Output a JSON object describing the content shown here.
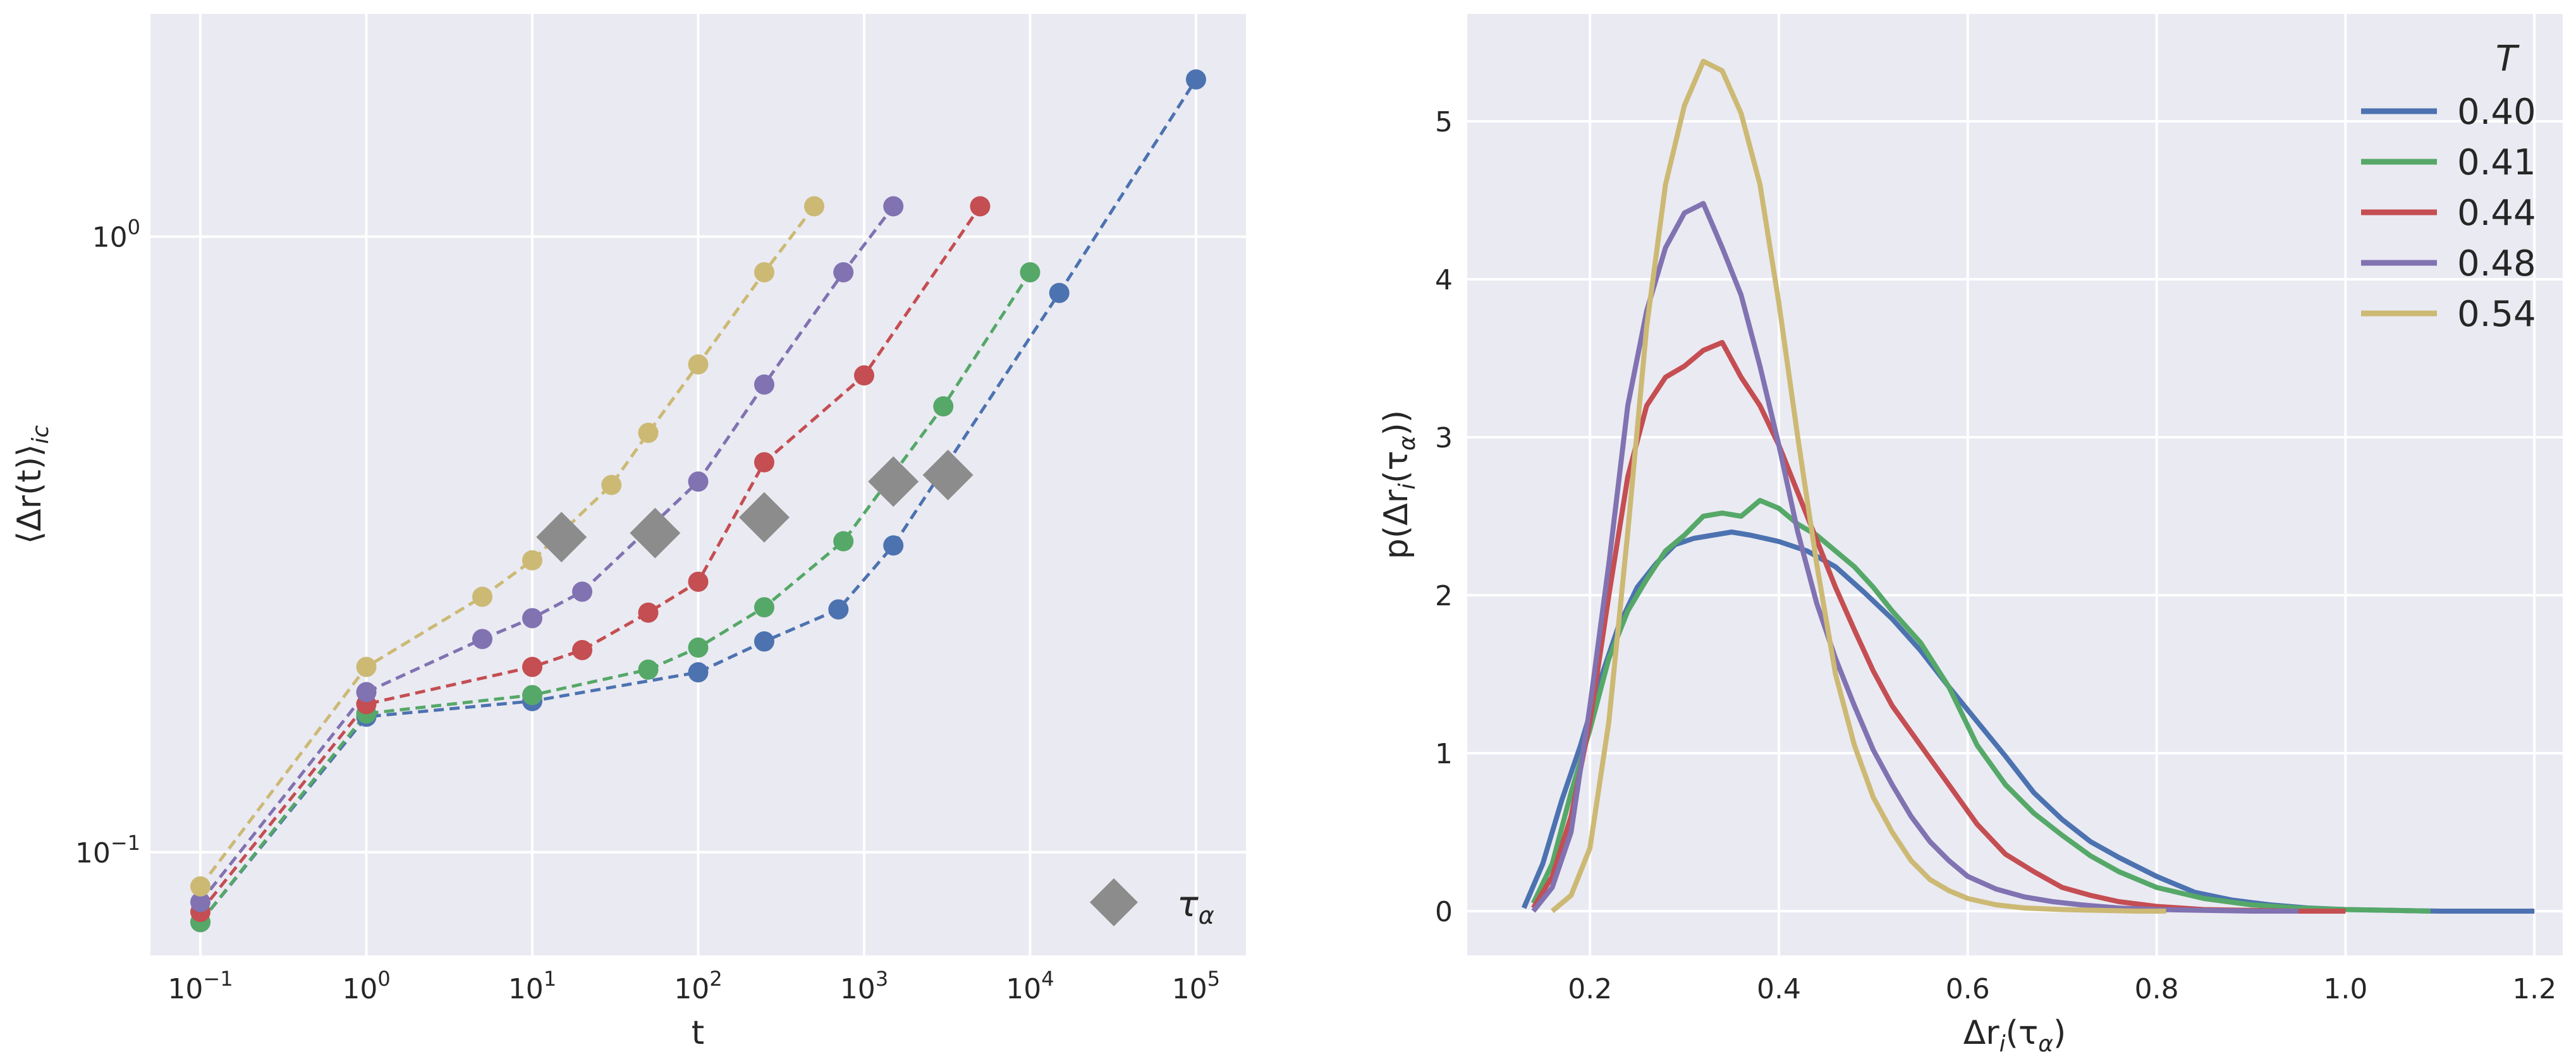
{
  "chart_data": [
    {
      "type": "line",
      "subtype": "log-log line with markers",
      "xlabel": "t",
      "ylabel_parts": [
        "⟨Δr(t)⟩",
        "ic"
      ],
      "xscale": "log",
      "yscale": "log",
      "xlim": [
        0.05,
        200000
      ],
      "ylim": [
        0.068,
        2.3
      ],
      "grid": true,
      "x_ticks": [
        {
          "value": 0.1,
          "base": "10",
          "exp": "−1"
        },
        {
          "value": 1,
          "base": "10",
          "exp": "0"
        },
        {
          "value": 10,
          "base": "10",
          "exp": "1"
        },
        {
          "value": 100,
          "base": "10",
          "exp": "2"
        },
        {
          "value": 1000,
          "base": "10",
          "exp": "3"
        },
        {
          "value": 10000,
          "base": "10",
          "exp": "4"
        },
        {
          "value": 100000,
          "base": "10",
          "exp": "5"
        }
      ],
      "y_ticks": [
        {
          "value": 0.1,
          "base": "10",
          "exp": "−1"
        },
        {
          "value": 1,
          "base": "10",
          "exp": "0"
        }
      ],
      "series": [
        {
          "name": "0.40",
          "color": "#4c72b0",
          "x": [
            0.1,
            1,
            10,
            100,
            250,
            700,
            1500,
            15000,
            100000
          ],
          "y": [
            0.077,
            0.166,
            0.176,
            0.196,
            0.22,
            0.248,
            0.315,
            0.81,
            1.8
          ]
        },
        {
          "name": "0.41",
          "color": "#55a868",
          "x": [
            0.1,
            1,
            10,
            50,
            100,
            250,
            750,
            3000,
            10000
          ],
          "y": [
            0.077,
            0.168,
            0.18,
            0.198,
            0.215,
            0.25,
            0.32,
            0.53,
            0.875
          ]
        },
        {
          "name": "0.44",
          "color": "#c44e52",
          "x": [
            0.1,
            1,
            10,
            20,
            50,
            100,
            250,
            1000,
            5000
          ],
          "y": [
            0.08,
            0.174,
            0.2,
            0.213,
            0.245,
            0.275,
            0.43,
            0.595,
            1.12
          ]
        },
        {
          "name": "0.48",
          "color": "#8172b2",
          "x": [
            0.1,
            1,
            5,
            10,
            20,
            100,
            250,
            750,
            1500
          ],
          "y": [
            0.083,
            0.182,
            0.222,
            0.24,
            0.265,
            0.4,
            0.575,
            0.875,
            1.12
          ]
        },
        {
          "name": "0.54",
          "color": "#ccb974",
          "x": [
            0.1,
            1,
            5,
            10,
            30,
            50,
            100,
            250,
            500
          ],
          "y": [
            0.088,
            0.2,
            0.26,
            0.298,
            0.395,
            0.48,
            0.62,
            0.875,
            1.12
          ]
        }
      ],
      "tau_alpha": {
        "label": "τ",
        "sub": "α",
        "color": "#8c8c8c",
        "points": [
          {
            "x": 15,
            "y": 0.325
          },
          {
            "x": 55,
            "y": 0.33
          },
          {
            "x": 250,
            "y": 0.35
          },
          {
            "x": 1500,
            "y": 0.4
          },
          {
            "x": 3200,
            "y": 0.41
          }
        ]
      }
    },
    {
      "type": "line",
      "xlabel": "Δr",
      "xlabel_sub": "i",
      "xlabel_tail": "(τ",
      "xlabel_sub2": "α",
      "xlabel_end": ")",
      "ylabel": "p(Δr",
      "ylabel_sub": "i",
      "ylabel_tail": "(τ",
      "ylabel_sub2": "α",
      "ylabel_end": "))",
      "xlim": [
        0.07,
        1.23
      ],
      "ylim": [
        -0.28,
        5.68
      ],
      "grid": true,
      "x_ticks": [
        "0.2",
        "0.4",
        "0.6",
        "0.8",
        "1.0",
        "1.2"
      ],
      "y_ticks": [
        "0",
        "1",
        "2",
        "3",
        "4",
        "5"
      ],
      "legend_title": "T",
      "legend_position": "top-right",
      "series": [
        {
          "name": "0.40",
          "color": "#4c72b0",
          "x": [
            0.13,
            0.15,
            0.17,
            0.19,
            0.21,
            0.23,
            0.25,
            0.27,
            0.29,
            0.31,
            0.33,
            0.35,
            0.37,
            0.4,
            0.43,
            0.46,
            0.49,
            0.52,
            0.55,
            0.58,
            0.61,
            0.64,
            0.67,
            0.7,
            0.73,
            0.76,
            0.8,
            0.84,
            0.88,
            0.92,
            0.96,
            1.0,
            1.05,
            1.1,
            1.15,
            1.2
          ],
          "y": [
            0.02,
            0.3,
            0.7,
            1.05,
            1.45,
            1.8,
            2.05,
            2.2,
            2.32,
            2.36,
            2.38,
            2.4,
            2.38,
            2.34,
            2.28,
            2.18,
            2.02,
            1.85,
            1.65,
            1.42,
            1.2,
            0.98,
            0.75,
            0.58,
            0.44,
            0.34,
            0.22,
            0.12,
            0.07,
            0.04,
            0.02,
            0.01,
            0.005,
            0.0,
            0.0,
            0.0
          ]
        },
        {
          "name": "0.41",
          "color": "#55a868",
          "x": [
            0.14,
            0.16,
            0.18,
            0.2,
            0.22,
            0.24,
            0.26,
            0.28,
            0.3,
            0.32,
            0.34,
            0.36,
            0.38,
            0.4,
            0.42,
            0.44,
            0.46,
            0.48,
            0.5,
            0.52,
            0.55,
            0.58,
            0.61,
            0.64,
            0.67,
            0.7,
            0.73,
            0.76,
            0.8,
            0.85,
            0.9,
            0.95,
            1.0,
            1.05,
            1.09
          ],
          "y": [
            0.05,
            0.3,
            0.75,
            1.15,
            1.6,
            1.9,
            2.1,
            2.28,
            2.38,
            2.5,
            2.52,
            2.5,
            2.6,
            2.55,
            2.45,
            2.38,
            2.28,
            2.18,
            2.05,
            1.9,
            1.7,
            1.42,
            1.05,
            0.8,
            0.62,
            0.48,
            0.35,
            0.25,
            0.15,
            0.08,
            0.04,
            0.02,
            0.01,
            0.005,
            0.0
          ]
        },
        {
          "name": "0.44",
          "color": "#c44e52",
          "x": [
            0.14,
            0.16,
            0.18,
            0.2,
            0.22,
            0.24,
            0.26,
            0.28,
            0.3,
            0.32,
            0.34,
            0.36,
            0.38,
            0.4,
            0.42,
            0.44,
            0.46,
            0.48,
            0.5,
            0.52,
            0.55,
            0.58,
            0.61,
            0.64,
            0.67,
            0.7,
            0.73,
            0.76,
            0.8,
            0.85,
            0.9,
            0.95,
            1.0
          ],
          "y": [
            0.02,
            0.22,
            0.6,
            1.2,
            2.0,
            2.75,
            3.2,
            3.38,
            3.45,
            3.55,
            3.6,
            3.38,
            3.2,
            2.95,
            2.65,
            2.35,
            2.05,
            1.78,
            1.52,
            1.3,
            1.05,
            0.8,
            0.55,
            0.36,
            0.25,
            0.15,
            0.1,
            0.06,
            0.03,
            0.01,
            0.005,
            0.0,
            0.0
          ]
        },
        {
          "name": "0.48",
          "color": "#8172b2",
          "x": [
            0.14,
            0.16,
            0.18,
            0.2,
            0.22,
            0.24,
            0.26,
            0.28,
            0.3,
            0.32,
            0.34,
            0.36,
            0.38,
            0.4,
            0.42,
            0.44,
            0.46,
            0.48,
            0.5,
            0.52,
            0.54,
            0.56,
            0.58,
            0.6,
            0.63,
            0.66,
            0.69,
            0.72,
            0.76,
            0.8,
            0.85,
            0.9,
            0.95
          ],
          "y": [
            0.0,
            0.15,
            0.5,
            1.3,
            2.2,
            3.2,
            3.8,
            4.2,
            4.42,
            4.48,
            4.2,
            3.9,
            3.45,
            2.95,
            2.4,
            1.95,
            1.6,
            1.3,
            1.02,
            0.8,
            0.6,
            0.44,
            0.32,
            0.22,
            0.14,
            0.09,
            0.06,
            0.04,
            0.02,
            0.01,
            0.005,
            0.0,
            0.0
          ]
        },
        {
          "name": "0.54",
          "color": "#ccb974",
          "x": [
            0.16,
            0.18,
            0.2,
            0.22,
            0.24,
            0.26,
            0.28,
            0.3,
            0.32,
            0.34,
            0.36,
            0.38,
            0.4,
            0.42,
            0.44,
            0.46,
            0.48,
            0.5,
            0.52,
            0.54,
            0.56,
            0.58,
            0.6,
            0.63,
            0.66,
            0.7,
            0.74,
            0.78,
            0.81
          ],
          "y": [
            0.0,
            0.1,
            0.4,
            1.2,
            2.4,
            3.7,
            4.6,
            5.1,
            5.38,
            5.32,
            5.05,
            4.6,
            3.85,
            3.0,
            2.2,
            1.5,
            1.05,
            0.72,
            0.5,
            0.32,
            0.2,
            0.13,
            0.08,
            0.04,
            0.02,
            0.01,
            0.005,
            0.0,
            0.0
          ]
        }
      ]
    }
  ]
}
